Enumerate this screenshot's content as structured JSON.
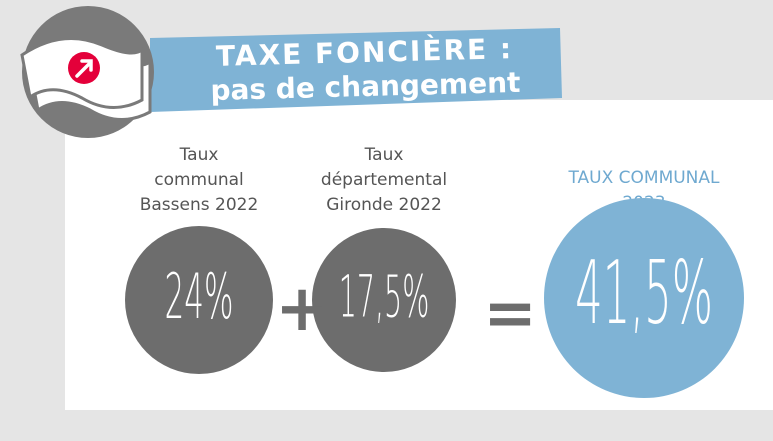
{
  "header": {
    "title_line1": "TAXE FONCIÈRE :",
    "title_line2": "pas de changement"
  },
  "items": [
    {
      "label": [
        "Taux",
        "communal",
        "Bassens 2022"
      ],
      "value": "24%"
    },
    {
      "label": [
        "Taux",
        "départemental",
        "Gironde 2022"
      ],
      "value": "17,5%"
    },
    {
      "label": [
        "TAUX COMMUNAL",
        "2023"
      ],
      "value": "41,5%"
    }
  ],
  "operators": [
    "+",
    "="
  ]
}
